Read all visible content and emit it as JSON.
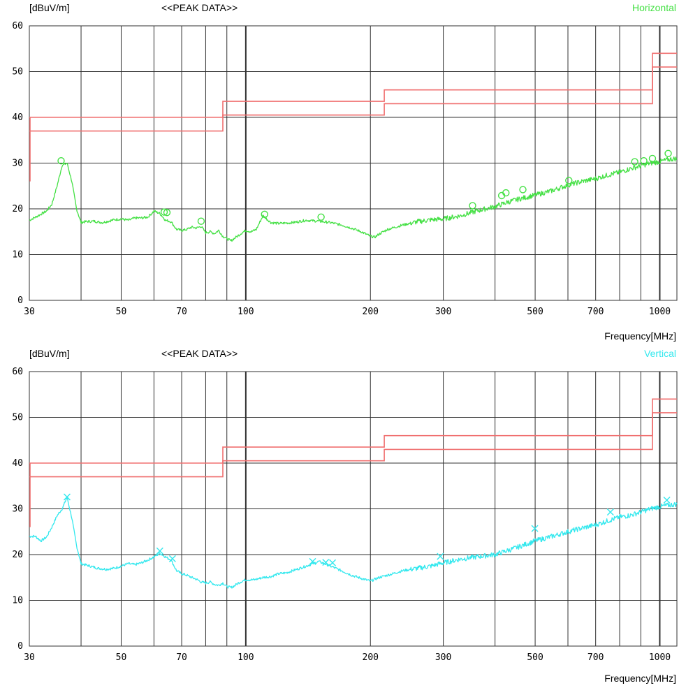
{
  "chart_data": [
    {
      "type": "line",
      "title": "<<PEAK DATA>>",
      "ylabel": "[dBuV/m]",
      "xlabel": "Frequency[MHz]",
      "polarization": "Horizontal",
      "trace_color": "#44e044",
      "marker": "circle",
      "xscale": "log",
      "xlim": [
        30,
        1100
      ],
      "ylim": [
        0,
        60
      ],
      "x_ticks": [
        30,
        50,
        70,
        100,
        200,
        300,
        500,
        700,
        1000
      ],
      "y_ticks": [
        0,
        10,
        20,
        30,
        40,
        50,
        60
      ],
      "grid": true,
      "limit_color": "#f07070",
      "limit_lines": [
        {
          "x": [
            30,
            88,
            88,
            216,
            216,
            960,
            960,
            1100
          ],
          "y": [
            40,
            40,
            43.5,
            43.5,
            46,
            46,
            54,
            54
          ]
        },
        {
          "x": [
            30,
            88,
            88,
            216,
            216,
            960,
            960,
            1100
          ],
          "y": [
            37,
            37,
            40.5,
            40.5,
            43,
            43,
            51,
            51
          ]
        }
      ],
      "series": [
        {
          "x": [
            30,
            31.5,
            33,
            34,
            35,
            36,
            37,
            38,
            39,
            40,
            41,
            43,
            45,
            48,
            50,
            52,
            54,
            56,
            58,
            60,
            62,
            64,
            66,
            68,
            70,
            72,
            74,
            76,
            78,
            80,
            82,
            84,
            86,
            88,
            90,
            92,
            94,
            96,
            98,
            100,
            103,
            106,
            110,
            115,
            120,
            130,
            140,
            150,
            160,
            170,
            180,
            190,
            200,
            205,
            210,
            220,
            240,
            260,
            280,
            300,
            330,
            360,
            400,
            430,
            460,
            500,
            550,
            600,
            650,
            700,
            750,
            800,
            850,
            900,
            950,
            1000,
            1050,
            1100
          ],
          "y": [
            17.5,
            18.5,
            19.5,
            21,
            25,
            29.5,
            30,
            26,
            20,
            17,
            17.2,
            17.3,
            17,
            17.6,
            17.8,
            17.5,
            18,
            18,
            18.2,
            19.5,
            19,
            17.5,
            17.2,
            15.5,
            15.3,
            15.5,
            16,
            15.8,
            16.2,
            14.8,
            15,
            14.6,
            15.3,
            14,
            13.5,
            13,
            13.6,
            14.2,
            14.8,
            15.3,
            15,
            15.5,
            18.5,
            17,
            16.8,
            17,
            17.5,
            17.3,
            17,
            16.5,
            15.8,
            15,
            14,
            13.8,
            14.5,
            15.5,
            16.5,
            17.2,
            17.6,
            17.8,
            18.5,
            19.5,
            20.5,
            21.5,
            22.2,
            23,
            24,
            25.2,
            26,
            26.6,
            27.4,
            28,
            28.8,
            29.4,
            30,
            30.3,
            30.8,
            31
          ]
        }
      ],
      "markers": [
        {
          "x": 35.8,
          "y": 30.5
        },
        {
          "x": 63.5,
          "y": 19.3
        },
        {
          "x": 64.5,
          "y": 19.2
        },
        {
          "x": 78,
          "y": 17.3
        },
        {
          "x": 111,
          "y": 18.8
        },
        {
          "x": 152,
          "y": 18.2
        },
        {
          "x": 353,
          "y": 20.7
        },
        {
          "x": 415,
          "y": 22.9
        },
        {
          "x": 425,
          "y": 23.5
        },
        {
          "x": 467,
          "y": 24.2
        },
        {
          "x": 603,
          "y": 26.2
        },
        {
          "x": 870,
          "y": 30.3
        },
        {
          "x": 915,
          "y": 30.5
        },
        {
          "x": 960,
          "y": 31
        },
        {
          "x": 1048,
          "y": 32.1
        }
      ]
    },
    {
      "type": "line",
      "title": "<<PEAK DATA>>",
      "ylabel": "[dBuV/m]",
      "xlabel": "Frequency[MHz]",
      "polarization": "Vertical",
      "trace_color": "#33e8ee",
      "marker": "x",
      "xscale": "log",
      "xlim": [
        30,
        1100
      ],
      "ylim": [
        0,
        60
      ],
      "x_ticks": [
        30,
        50,
        70,
        100,
        200,
        300,
        500,
        700,
        1000
      ],
      "y_ticks": [
        0,
        10,
        20,
        30,
        40,
        50,
        60
      ],
      "grid": true,
      "limit_color": "#f07070",
      "limit_lines": [
        {
          "x": [
            30,
            88,
            88,
            216,
            216,
            960,
            960,
            1100
          ],
          "y": [
            40,
            40,
            43.5,
            43.5,
            46,
            46,
            54,
            54
          ]
        },
        {
          "x": [
            30,
            88,
            88,
            216,
            216,
            960,
            960,
            1100
          ],
          "y": [
            37,
            37,
            40.5,
            40.5,
            43,
            43,
            51,
            51
          ]
        }
      ],
      "series": [
        {
          "x": [
            30,
            31,
            32,
            33,
            34,
            35,
            36,
            37,
            38,
            39,
            40,
            42,
            44,
            46,
            48,
            50,
            52,
            54,
            56,
            58,
            60,
            62,
            64,
            66,
            68,
            70,
            72,
            74,
            76,
            78,
            80,
            82,
            84,
            86,
            88,
            90,
            92,
            94,
            96,
            98,
            100,
            105,
            110,
            115,
            120,
            125,
            130,
            135,
            140,
            145,
            150,
            155,
            160,
            170,
            180,
            190,
            200,
            210,
            220,
            240,
            260,
            280,
            300,
            330,
            360,
            400,
            450,
            500,
            550,
            600,
            650,
            700,
            750,
            800,
            850,
            900,
            950,
            1000,
            1050,
            1100
          ],
          "y": [
            24,
            24,
            23,
            23.8,
            26,
            28.5,
            30,
            32.5,
            28,
            22,
            18,
            17.5,
            17,
            16.8,
            17,
            17.5,
            18,
            17.8,
            18.2,
            18.8,
            19.5,
            20.3,
            19.5,
            18.8,
            16.5,
            15.8,
            15.5,
            15,
            14.6,
            14,
            13.8,
            14,
            13.5,
            13.3,
            13.8,
            13,
            12.8,
            13.2,
            13.8,
            14.2,
            14.5,
            14.5,
            15,
            15.2,
            15.8,
            16,
            16.5,
            17,
            17.5,
            18,
            18.5,
            18,
            17.5,
            16.5,
            15.5,
            14.8,
            14.2,
            15,
            15.5,
            16.5,
            17,
            17.5,
            18.2,
            19,
            19.5,
            20,
            21.5,
            23,
            24,
            25,
            25.8,
            26.5,
            27.4,
            28.2,
            28.6,
            29.3,
            30,
            30.5,
            30.8,
            31
          ]
        }
      ],
      "markers": [
        {
          "x": 37,
          "y": 32.6
        },
        {
          "x": 62,
          "y": 20.8
        },
        {
          "x": 66.5,
          "y": 19.1
        },
        {
          "x": 145,
          "y": 18.5
        },
        {
          "x": 156,
          "y": 18.3
        },
        {
          "x": 162,
          "y": 18.2
        },
        {
          "x": 295,
          "y": 19.6
        },
        {
          "x": 499,
          "y": 25.7
        },
        {
          "x": 760,
          "y": 29.3
        },
        {
          "x": 1040,
          "y": 31.9
        }
      ]
    }
  ]
}
